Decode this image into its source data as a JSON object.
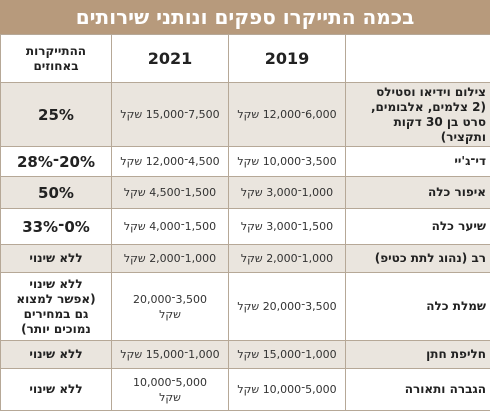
{
  "title": "בכמה התייקרו ספקים ונותני שירותים",
  "headers": {
    "year_2019": "2019",
    "year_2021": "2021",
    "pct_change": "ההתייקרות\nבאחוזים"
  },
  "rows": [
    {
      "item": "צילום וידיאו וסטילס\n(2 צלמים, אלבומים,\nסרט בן 30 דקות\nותקציר)",
      "price_2019": "6,000־12,000 שקל",
      "price_2021": "7,500־15,000 שקל",
      "pct": "25%"
    },
    {
      "item": "די־ג'יי",
      "price_2019": "3,500־10,000 שקל",
      "price_2021": "4,500־12,000 שקל",
      "pct": "20%־28%"
    },
    {
      "item": "איפור כלה",
      "price_2019": "1,000־3,000 שקל",
      "price_2021": "1,500־4,500 שקל",
      "pct": "50%"
    },
    {
      "item": "שיער כלה",
      "price_2019": "1,500־3,000 שקל",
      "price_2021": "1,500־4,000 שקל",
      "pct": "0%־33%"
    },
    {
      "item": "רב (נהוג לתת כטיפ)",
      "price_2019": "1,000־2,000 שקל",
      "price_2021": "1,000־2,000 שקל",
      "pct": "ללא שינוי"
    },
    {
      "item": "שמלת כלה",
      "price_2019": "3,500־20,000 שקל",
      "price_2021": "3,500־20,000\nשקל",
      "pct": "ללא שינוי\n(אפשר למצוא\nגם במחירים\nנמוכים יותר)"
    },
    {
      "item": "חליפת חתן",
      "price_2019": "1,000־15,000 שקל",
      "price_2021": "1,000־15,000 שקל",
      "pct": "ללא שינוי"
    },
    {
      "item": "הגברה ותאורה",
      "price_2019": "5,000־10,000 שקל",
      "price_2021": "5,000־10,000\nשקל",
      "pct": "ללא שינוי"
    }
  ]
}
